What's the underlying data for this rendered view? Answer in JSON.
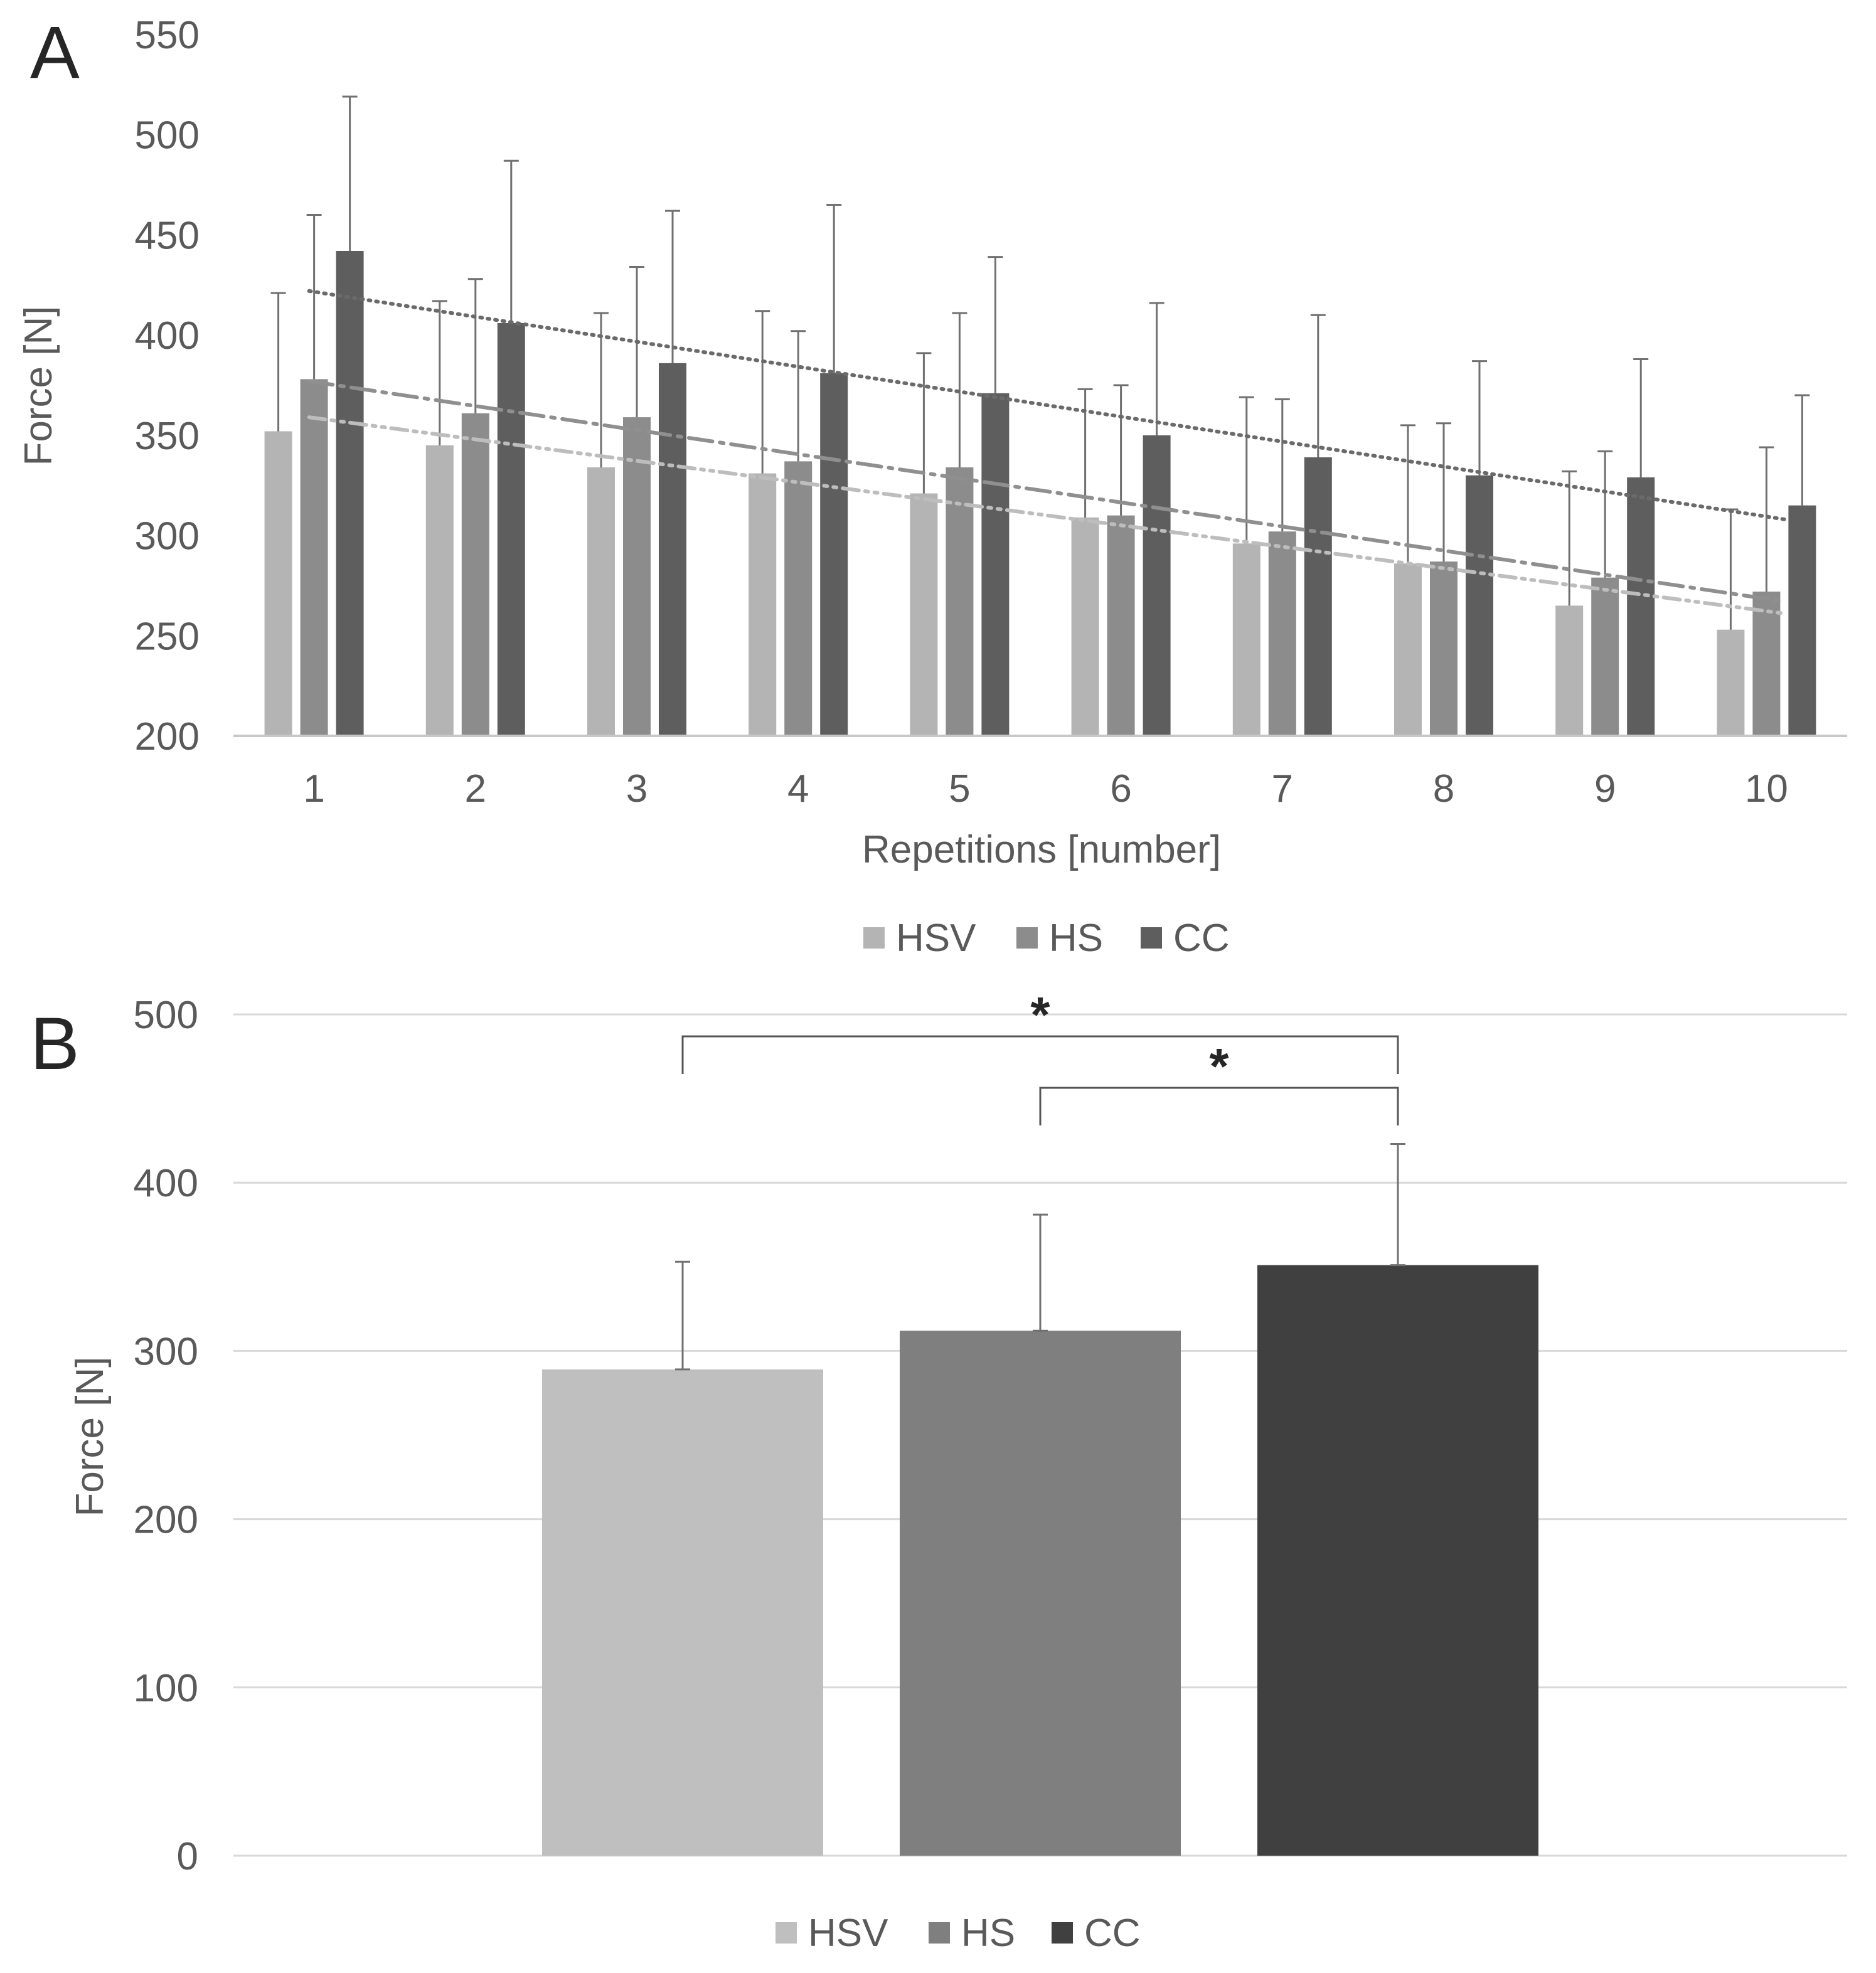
{
  "chart_data": [
    {
      "panel_label": "A",
      "type": "bar",
      "categories": [
        "1",
        "2",
        "3",
        "4",
        "5",
        "6",
        "7",
        "8",
        "9",
        "10"
      ],
      "series": [
        {
          "name": "HSV",
          "color": "#b4b4b4",
          "values": [
            352,
            345,
            334,
            331,
            321,
            309,
            296,
            286,
            265,
            253
          ],
          "error": [
            69,
            72,
            77,
            81,
            70,
            64,
            73,
            69,
            67,
            60
          ],
          "trendline": {
            "style": "dash-dot-dot",
            "color": "#bdbdbd",
            "start": 359,
            "end": 261
          }
        },
        {
          "name": "HS",
          "color": "#8c8c8c",
          "values": [
            378,
            361,
            359,
            337,
            334,
            310,
            302,
            287,
            279,
            272
          ],
          "error": [
            82,
            67,
            75,
            65,
            77,
            65,
            66,
            69,
            63,
            72
          ],
          "trendline": {
            "style": "long-dash-dot",
            "color": "#8f8f8f",
            "start": 377,
            "end": 267
          }
        },
        {
          "name": "CC",
          "color": "#5e5e5e",
          "values": [
            442,
            406,
            386,
            381,
            371,
            350,
            339,
            330,
            329,
            315
          ],
          "error": [
            77,
            81,
            76,
            84,
            68,
            66,
            71,
            57,
            59,
            55
          ],
          "trendline": {
            "style": "dotted",
            "color": "#6a6a6a",
            "start": 422,
            "end": 308
          }
        }
      ],
      "xlabel": "Repetitions [number]",
      "ylabel": "Force [N]",
      "ylim": [
        200,
        550
      ],
      "yticks": [
        "200",
        "250",
        "300",
        "350",
        "400",
        "450",
        "500",
        "550"
      ],
      "grid": false,
      "legend": "bottom-center"
    },
    {
      "panel_label": "B",
      "type": "bar",
      "categories": [
        "HSV",
        "HS",
        "CC"
      ],
      "values": [
        289,
        312,
        351
      ],
      "error": [
        64,
        69,
        72
      ],
      "colors": [
        "#bfbfbf",
        "#7f7f7f",
        "#404040"
      ],
      "ylabel": "Force [N]",
      "ylim": [
        0,
        500
      ],
      "yticks": [
        "0",
        "100",
        "200",
        "300",
        "400",
        "500"
      ],
      "grid": true,
      "legend": "bottom-center",
      "significance": [
        {
          "from": "HSV",
          "to": "CC",
          "label": "*"
        },
        {
          "from": "HS",
          "to": "CC",
          "label": "*"
        }
      ]
    }
  ]
}
